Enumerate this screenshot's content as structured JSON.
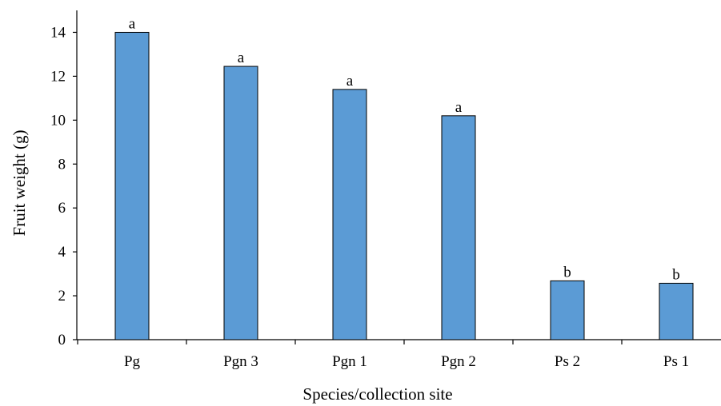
{
  "chart_data": {
    "type": "bar",
    "categories": [
      "Pg",
      "Pgn 3",
      "Pgn 1",
      "Pgn 2",
      "Ps 2",
      "Ps 1"
    ],
    "values": [
      14.0,
      12.45,
      11.4,
      10.2,
      2.68,
      2.57
    ],
    "significance_labels": [
      "a",
      "a",
      "a",
      "a",
      "b",
      "b"
    ],
    "title": "",
    "xlabel": "Species/collection site",
    "ylabel": "Fruit weight (g)",
    "ylim": [
      0,
      14
    ],
    "yticks": [
      0,
      2,
      4,
      6,
      8,
      10,
      12,
      14
    ],
    "grid": false,
    "legend": "none",
    "bar_color": "#5B9BD5",
    "bar_edge_color": "#000000"
  }
}
